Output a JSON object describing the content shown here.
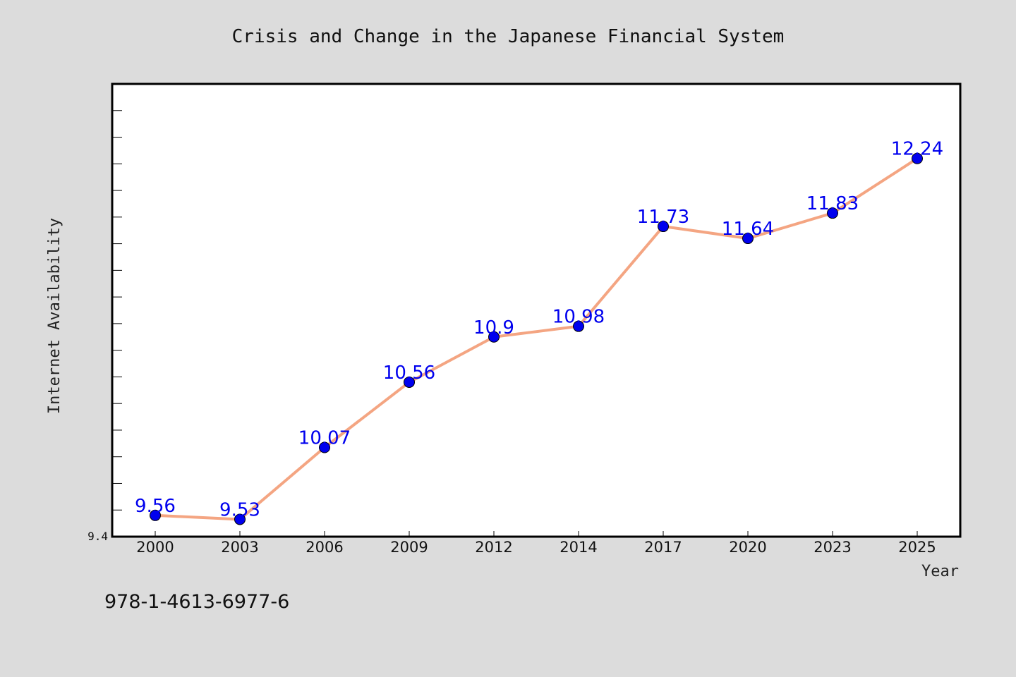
{
  "chart_data": {
    "type": "line",
    "title": "Crisis and Change in the Japanese Financial System",
    "xlabel": "Year",
    "ylabel": "Internet Availability",
    "categories": [
      "2000",
      "2003",
      "2006",
      "2009",
      "2012",
      "2014",
      "2017",
      "2020",
      "2023",
      "2025"
    ],
    "values": [
      9.56,
      9.53,
      10.07,
      10.56,
      10.9,
      10.98,
      11.73,
      11.64,
      11.83,
      12.24
    ],
    "data_labels": [
      "9.56",
      "9.53",
      "10.07",
      "10.56",
      "10.9",
      "10.98",
      "11.73",
      "11.64",
      "11.83",
      "12.24"
    ],
    "yticks": [
      "9.4"
    ],
    "ylim": [
      9.4,
      12.8
    ],
    "grid": false,
    "line_color": "#f4a582",
    "marker_color": "#0000ee",
    "label_color": "#0000ee",
    "frame_color": "#000000",
    "plot_background": "#ffffff",
    "page_background": "#dcdcdc"
  },
  "footer": {
    "isbn": "978-1-4613-6977-6"
  }
}
